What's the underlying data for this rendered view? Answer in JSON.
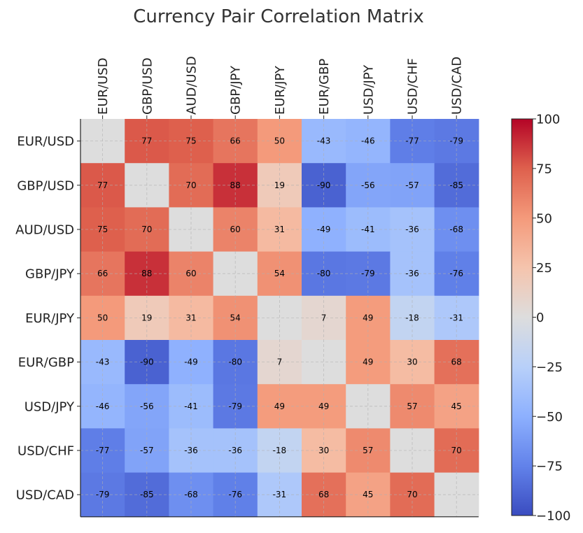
{
  "chart_data": {
    "type": "heatmap",
    "title": "Currency Pair Correlation Matrix",
    "labels": [
      "EUR/USD",
      "GBP/USD",
      "AUD/USD",
      "GBP/JPY",
      "EUR/JPY",
      "EUR/GBP",
      "USD/JPY",
      "USD/CHF",
      "USD/CAD"
    ],
    "matrix": [
      [
        0,
        77,
        75,
        66,
        50,
        -43,
        -46,
        -77,
        -79
      ],
      [
        77,
        0,
        70,
        88,
        19,
        -90,
        -56,
        -57,
        -85
      ],
      [
        75,
        70,
        0,
        60,
        31,
        -49,
        -41,
        -36,
        -68
      ],
      [
        66,
        88,
        60,
        0,
        54,
        -80,
        -79,
        -36,
        -76
      ],
      [
        50,
        19,
        31,
        54,
        0,
        7,
        49,
        -18,
        -31
      ],
      [
        -43,
        -90,
        -49,
        -80,
        7,
        0,
        49,
        30,
        68
      ],
      [
        -46,
        -56,
        -41,
        -79,
        49,
        49,
        0,
        57,
        45
      ],
      [
        -77,
        -57,
        -36,
        -36,
        -18,
        30,
        57,
        0,
        70
      ],
      [
        -79,
        -85,
        -68,
        -76,
        -31,
        68,
        45,
        70,
        0
      ]
    ],
    "show_diagonal_values": false,
    "value_range": [
      -100,
      100
    ],
    "colorscale": "coolwarm",
    "colorbar": {
      "ticks": [
        "100",
        "75",
        "50",
        "25",
        "0",
        "−25",
        "−50",
        "−75",
        "−100"
      ],
      "tick_values": [
        100,
        75,
        50,
        25,
        0,
        -25,
        -50,
        -75,
        -100
      ],
      "placement": "right"
    },
    "grid": true,
    "x_tick_position": "top"
  }
}
